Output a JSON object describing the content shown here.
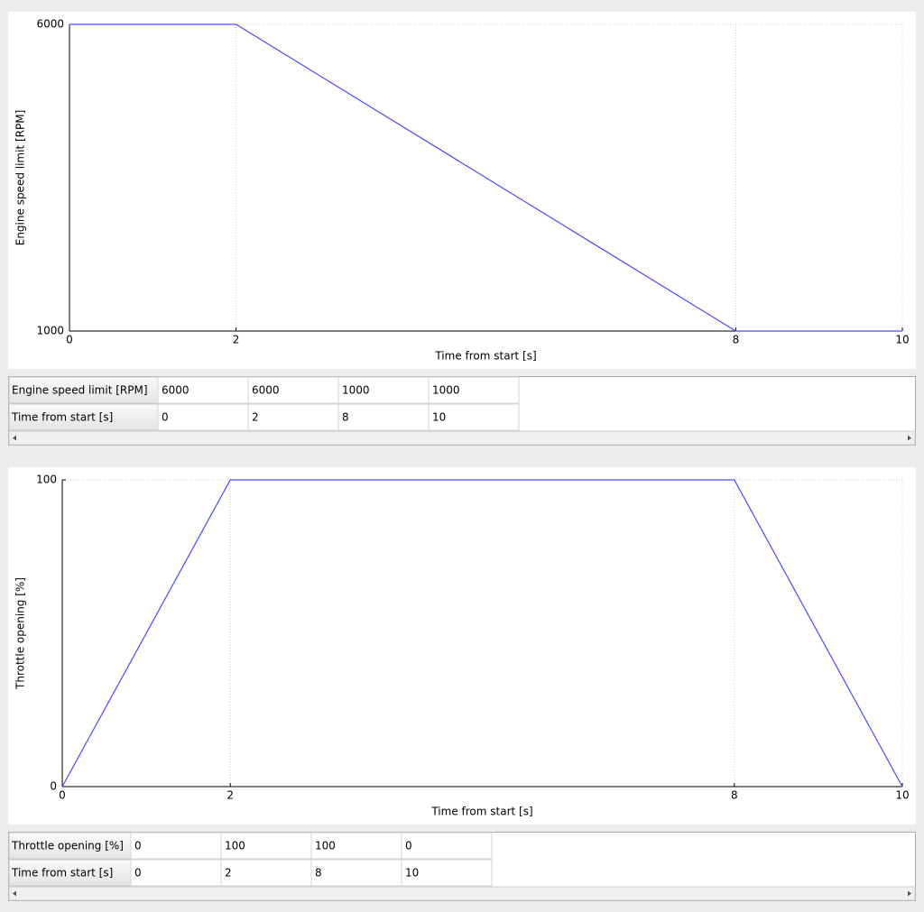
{
  "chart_data": [
    {
      "type": "line",
      "x": [
        0,
        2,
        8,
        10
      ],
      "values": [
        6000,
        6000,
        1000,
        1000
      ],
      "color": "#4a4aff",
      "xlim": [
        0,
        10
      ],
      "xticks": [
        0,
        2,
        8,
        10
      ],
      "ylim": [
        1000,
        6000
      ],
      "yticks": [
        1000,
        6000
      ],
      "xlabel": "Time from start [s]",
      "ylabel": "Engine speed limit [RPM]",
      "grid": true
    },
    {
      "type": "line",
      "x": [
        0,
        2,
        8,
        10
      ],
      "values": [
        0,
        100,
        100,
        0
      ],
      "color": "#4a4aff",
      "xlim": [
        0,
        10
      ],
      "xticks": [
        0,
        2,
        8,
        10
      ],
      "ylim": [
        0,
        100
      ],
      "yticks": [
        0,
        100
      ],
      "xlabel": "Time from start [s]",
      "ylabel": "Throttle opening [%]",
      "grid": true
    }
  ],
  "tables": [
    {
      "rows": [
        [
          "Engine speed limit [RPM]",
          6000,
          6000,
          1000,
          1000
        ],
        [
          "Time from start [s]",
          0,
          2,
          8,
          10
        ]
      ]
    },
    {
      "rows": [
        [
          "Throttle opening [%]",
          0,
          100,
          100,
          0
        ],
        [
          "Time from start [s]",
          0,
          2,
          8,
          10
        ]
      ]
    }
  ]
}
